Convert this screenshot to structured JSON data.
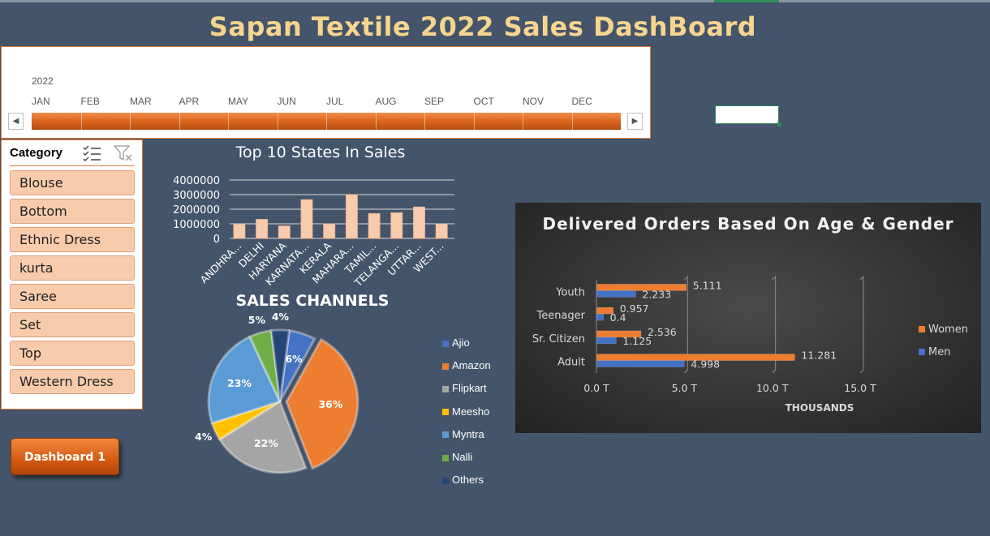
{
  "title": "Sapan Textile 2022 Sales DashBoard",
  "timeline": {
    "year": "2022",
    "months": [
      "JAN",
      "FEB",
      "MAR",
      "APR",
      "MAY",
      "JUN",
      "JUL",
      "AUG",
      "SEP",
      "OCT",
      "NOV",
      "DEC"
    ],
    "left_arrow": "◀",
    "right_arrow": "▶"
  },
  "slicer": {
    "header": "Category",
    "items": [
      "Blouse",
      "Bottom",
      "Ethnic Dress",
      "kurta",
      "Saree",
      "Set",
      "Top",
      "Western Dress"
    ]
  },
  "dashboard_button": "Dashboard 1",
  "colors": {
    "accent": "#E07B39",
    "bar_fill": "#F8CBAD",
    "women": "#ED7D31",
    "men": "#4472C4",
    "title": "#F6D58E"
  },
  "chart_data": [
    {
      "type": "bar",
      "title": "Top 10 States In Sales",
      "categories": [
        "ANDHRA...",
        "DELHI",
        "HARYANA",
        "KARNATA...",
        "KERALA",
        "MAHARA...",
        "TAMIL...",
        "TELANGA...",
        "UTTAR...",
        "WEST..."
      ],
      "values": [
        950000,
        1300000,
        850000,
        2650000,
        1000000,
        3000000,
        1700000,
        1750000,
        2150000,
        950000
      ],
      "ylim": [
        0,
        4000000
      ],
      "yticks": [
        "4000000",
        "3000000",
        "2000000",
        "1000000",
        "0"
      ],
      "grid": true
    },
    {
      "type": "pie",
      "title": "SALES CHANNELS",
      "labels": [
        "Ajio",
        "Amazon",
        "Flipkart",
        "Meesho",
        "Myntra",
        "Nalli",
        "Others"
      ],
      "values": [
        6,
        36,
        22,
        4,
        23,
        5,
        4
      ],
      "value_labels": [
        "6%",
        "36%",
        "22%",
        "4%",
        "23%",
        "5%",
        "4%"
      ],
      "colors": [
        "#4472C4",
        "#ED7D31",
        "#A5A5A5",
        "#FFC000",
        "#5B9BD5",
        "#70AD47",
        "#264478"
      ],
      "legend": "right"
    },
    {
      "type": "bar",
      "orientation": "horizontal",
      "title": "Delivered Orders Based On Age & Gender",
      "categories": [
        "Adult",
        "Sr. Citizen",
        "Teenager",
        "Youth"
      ],
      "series": [
        {
          "name": "Women",
          "values": [
            11.281,
            2.536,
            0.957,
            5.111
          ],
          "labels": [
            "11.281",
            "2.536",
            "0.957",
            "5.111"
          ]
        },
        {
          "name": "Men",
          "values": [
            4.998,
            1.125,
            0.4,
            2.233
          ],
          "labels": [
            "4.998",
            "1.125",
            "0.4",
            "2.233"
          ]
        }
      ],
      "xlim": [
        0,
        15
      ],
      "xticks": [
        "0.0 T",
        "5.0 T",
        "10.0 T",
        "15.0 T"
      ],
      "xlabel": "THOUSANDS",
      "legend": "right"
    }
  ]
}
